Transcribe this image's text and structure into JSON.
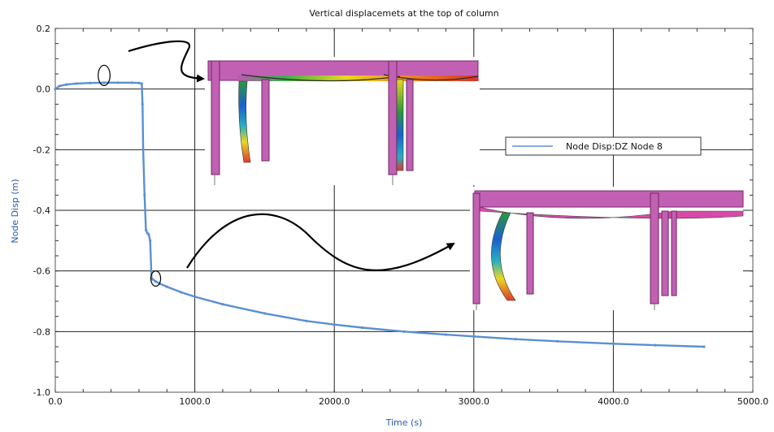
{
  "chart_data": {
    "type": "line",
    "title": "Vertical displacemets at the top of column",
    "xlabel": "Time (s)",
    "ylabel": "Node Disp  (m)",
    "xlim": [
      0,
      5000
    ],
    "ylim": [
      -1.0,
      0.2
    ],
    "x_ticks_major": [
      0,
      1000,
      2000,
      3000,
      4000,
      5000
    ],
    "x_tick_labels": [
      "0.0",
      "1000.0",
      "2000.0",
      "3000.0",
      "4000.0",
      "5000.0"
    ],
    "y_ticks_major": [
      0.2,
      0.0,
      -0.2,
      -0.4,
      -0.6,
      -0.8,
      -1.0
    ],
    "y_tick_labels": [
      "0.2",
      "0.0",
      "-0.2",
      "-0.4",
      "-0.6",
      "-0.8",
      "-1.0"
    ],
    "grid": true,
    "legend_position": "right",
    "series": [
      {
        "name": "Node Disp:DZ  Node 8",
        "color": "#5b8fd0",
        "x": [
          0,
          30,
          80,
          150,
          250,
          350,
          450,
          550,
          600,
          620,
          625,
          630,
          640,
          650,
          660,
          670,
          680,
          690,
          700,
          720,
          750,
          800,
          900,
          1000,
          1200,
          1500,
          1800,
          2000,
          2200,
          2500,
          2800,
          3000,
          3300,
          3600,
          4000,
          4300,
          4650
        ],
        "y": [
          0.0,
          0.01,
          0.015,
          0.018,
          0.02,
          0.021,
          0.021,
          0.021,
          0.02,
          0.018,
          -0.05,
          -0.2,
          -0.35,
          -0.465,
          -0.475,
          -0.48,
          -0.5,
          -0.625,
          -0.628,
          -0.635,
          -0.642,
          -0.652,
          -0.67,
          -0.685,
          -0.71,
          -0.74,
          -0.765,
          -0.777,
          -0.787,
          -0.8,
          -0.81,
          -0.816,
          -0.825,
          -0.832,
          -0.84,
          -0.845,
          -0.85
        ]
      }
    ],
    "annotations": {
      "ellipses": [
        {
          "cx": 350,
          "cy": 0.045,
          "rx": 170,
          "ry": 0.08
        },
        {
          "cx": 720,
          "cy": -0.625,
          "rx": 140,
          "ry": 0.06
        }
      ]
    }
  },
  "colors": {
    "series_line": "#5b8fd0",
    "axis_label": "#2a5aa8",
    "beam": "#b85bb0",
    "frame_border": "#555555"
  },
  "insets": [
    {
      "name": "deformed-frame-early",
      "depiction": "3d-frame-model"
    },
    {
      "name": "deformed-frame-late",
      "depiction": "3d-frame-model"
    }
  ]
}
